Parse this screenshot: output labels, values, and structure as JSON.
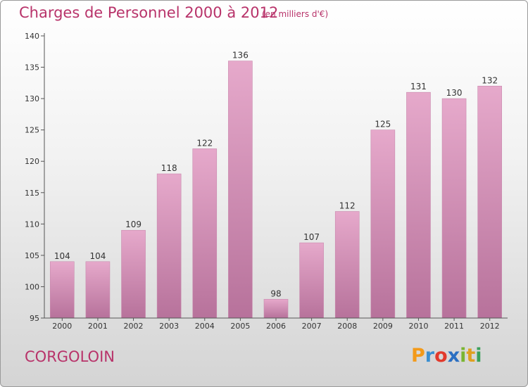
{
  "title": "Charges de Personnel 2000 à 2012",
  "subtitle": "(en milliers d'€)",
  "commune": "CORGOLOIN",
  "logo": {
    "letters": [
      "P",
      "r",
      "o",
      "x",
      "i",
      "t",
      "i"
    ]
  },
  "colors": {
    "bar": "#d98db6",
    "bar_top": "#e5a8ca",
    "bar_bottom": "#b8709a",
    "text_accent": "#b8336a"
  },
  "chart_data": {
    "type": "bar",
    "title": "Charges de Personnel 2000 à 2012",
    "subtitle": "(en milliers d'€)",
    "categories": [
      "2000",
      "2001",
      "2002",
      "2003",
      "2004",
      "2005",
      "2006",
      "2007",
      "2008",
      "2009",
      "2010",
      "2011",
      "2012"
    ],
    "values": [
      104,
      104,
      109,
      118,
      122,
      136,
      98,
      107,
      112,
      125,
      131,
      130,
      132
    ],
    "ylim": [
      95,
      140
    ],
    "yticks": [
      95,
      100,
      105,
      110,
      115,
      120,
      125,
      130,
      135,
      140
    ],
    "grid": false,
    "legend": "none"
  }
}
